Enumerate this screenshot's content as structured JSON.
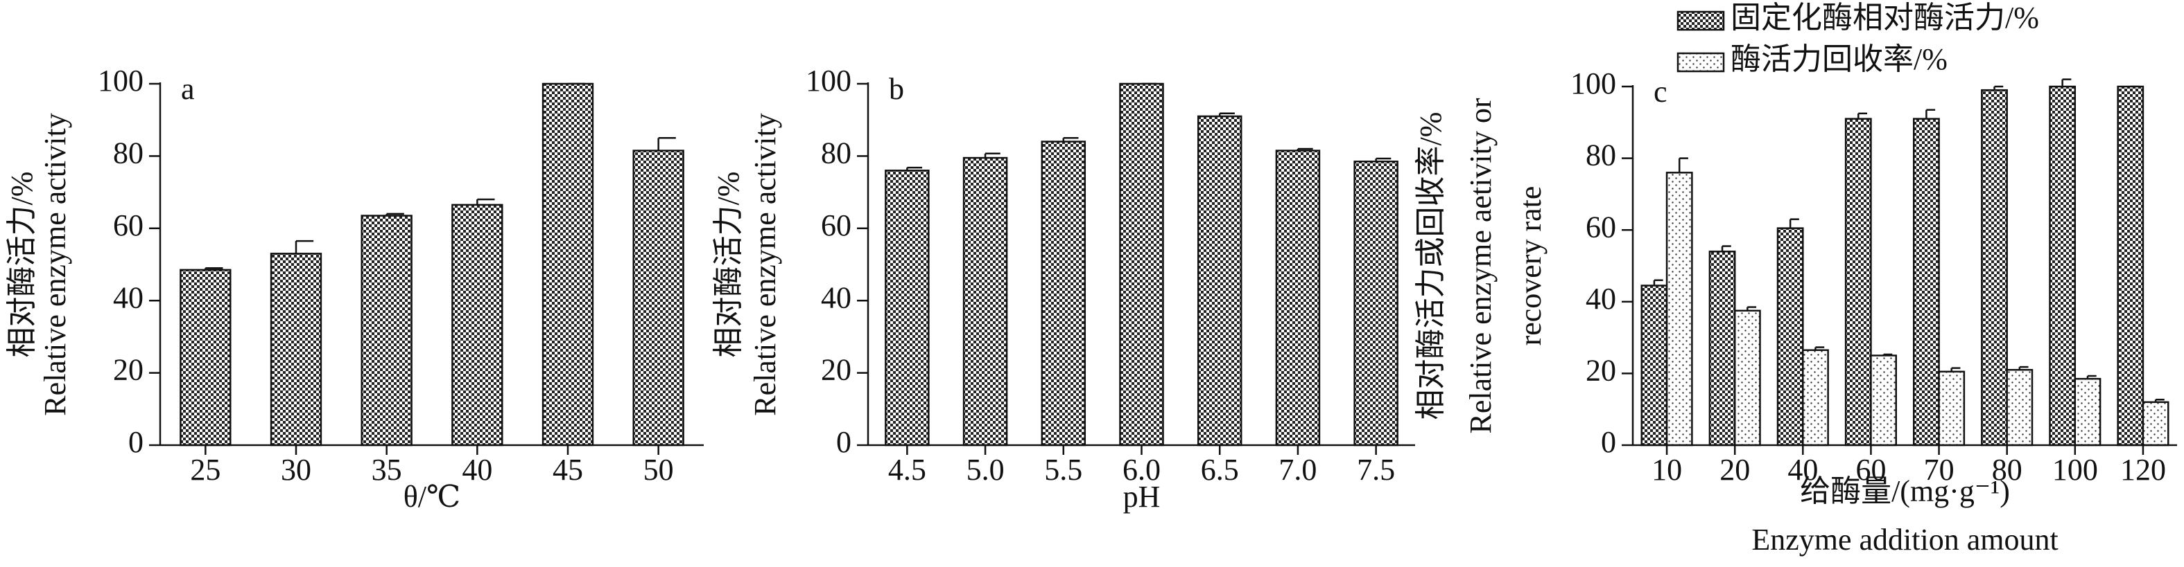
{
  "chart_data": [
    {
      "type": "bar",
      "panel_label": "a",
      "ylabel": [
        "相对酶活力/%",
        "Relative enzyme activity"
      ],
      "xlabel": [
        "θ/℃"
      ],
      "categories": [
        "25",
        "30",
        "35",
        "40",
        "45",
        "50"
      ],
      "series": [
        {
          "fill": "checker",
          "values": [
            48.5,
            53,
            63.5,
            66.5,
            100,
            81.5
          ],
          "errors": [
            0.5,
            3.5,
            0.5,
            1.5,
            0,
            3.5
          ]
        }
      ],
      "ylim": [
        0,
        100
      ],
      "yticks": [
        0,
        20,
        40,
        60,
        80,
        100
      ]
    },
    {
      "type": "bar",
      "panel_label": "b",
      "ylabel": [
        "相对酶活力/%",
        "Relative enzyme activity"
      ],
      "xlabel": [
        "pH"
      ],
      "categories": [
        "4.5",
        "5.0",
        "5.5",
        "6.0",
        "6.5",
        "7.0",
        "7.5"
      ],
      "series": [
        {
          "fill": "checker",
          "values": [
            76,
            79.5,
            84,
            100,
            91,
            81.5,
            78.5
          ],
          "errors": [
            0.8,
            1.2,
            1,
            0,
            0.8,
            0.5,
            0.8
          ]
        }
      ],
      "ylim": [
        0,
        100
      ],
      "yticks": [
        0,
        20,
        40,
        60,
        80,
        100
      ]
    },
    {
      "type": "bar",
      "panel_label": "c",
      "ylabel": [
        "相对酶活力或回收率/%",
        "Relative enzyme aetivity or",
        "recovery rate"
      ],
      "xlabel": [
        "给酶量/(mg·g⁻¹)",
        "Enzyme addition amount"
      ],
      "categories": [
        "10",
        "20",
        "40",
        "60",
        "70",
        "80",
        "100",
        "120"
      ],
      "series": [
        {
          "name": "固定化酶相对酶活力/%",
          "fill": "checker",
          "values": [
            44.5,
            54,
            60.5,
            91,
            91,
            99,
            100,
            100
          ],
          "errors": [
            1.5,
            1.5,
            2.5,
            1.5,
            2.5,
            1,
            2,
            0
          ]
        },
        {
          "name": "酶活力回收率/%",
          "fill": "dots",
          "values": [
            76,
            37.5,
            26.5,
            25,
            20.5,
            21,
            18.5,
            12
          ],
          "errors": [
            4,
            1,
            0.8,
            0.3,
            1,
            0.8,
            0.8,
            0.7
          ]
        }
      ],
      "ylim": [
        0,
        100
      ],
      "yticks": [
        0,
        20,
        40,
        60,
        80,
        100
      ]
    }
  ]
}
